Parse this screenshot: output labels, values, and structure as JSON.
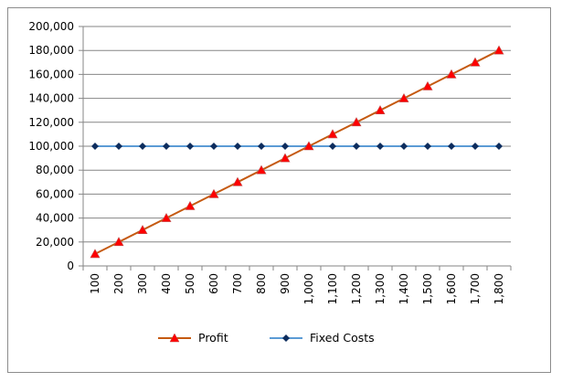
{
  "chart_data": {
    "type": "line",
    "title": "",
    "xlabel": "",
    "ylabel": "",
    "categories": [
      "100",
      "200",
      "300",
      "400",
      "500",
      "600",
      "700",
      "800",
      "900",
      "1,000",
      "1,100",
      "1,200",
      "1,300",
      "1,400",
      "1,500",
      "1,600",
      "1,700",
      "1,800"
    ],
    "series": [
      {
        "name": "Profit",
        "color": "#c55a11",
        "marker": "triangle",
        "marker_color": "#ff0000",
        "values": [
          10000,
          20000,
          30000,
          40000,
          50000,
          60000,
          70000,
          80000,
          90000,
          100000,
          110000,
          120000,
          130000,
          140000,
          150000,
          160000,
          170000,
          180000
        ]
      },
      {
        "name": "Fixed Costs",
        "color": "#5b9bd5",
        "marker": "diamond",
        "marker_color": "#0d2d5e",
        "values": [
          100000,
          100000,
          100000,
          100000,
          100000,
          100000,
          100000,
          100000,
          100000,
          100000,
          100000,
          100000,
          100000,
          100000,
          100000,
          100000,
          100000,
          100000
        ]
      }
    ],
    "ylim": [
      0,
      200000
    ],
    "yticks": [
      "0",
      "20,000",
      "40,000",
      "60,000",
      "80,000",
      "100,000",
      "120,000",
      "140,000",
      "160,000",
      "180,000",
      "200,000"
    ],
    "grid": true,
    "legend_position": "bottom"
  },
  "legend": {
    "profit_label": "Profit",
    "fixed_costs_label": "Fixed Costs"
  }
}
